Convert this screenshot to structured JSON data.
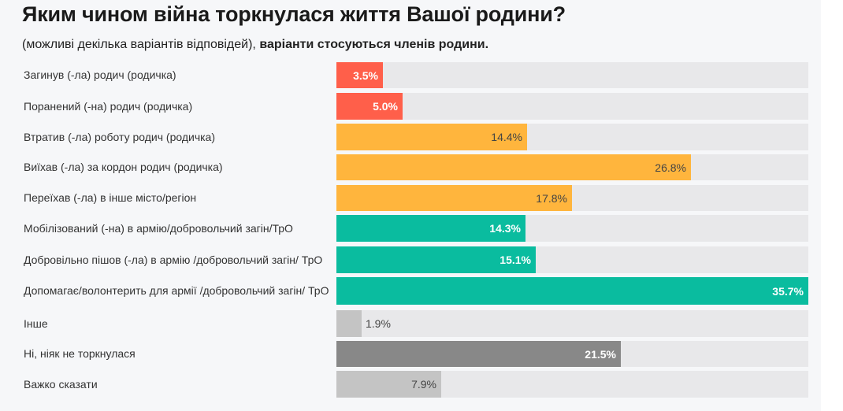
{
  "title": "Яким чином війна торкнулася життя Вашої родини?",
  "subtitle_normal": "(можливі декілька варіантів відповідей),",
  "subtitle_bold": "варіанти стосуються членів родини.",
  "chart_data": {
    "type": "bar",
    "orientation": "horizontal",
    "title": "Яким чином війна торкнулася життя Вашої родини?",
    "xlim": [
      0,
      35.7
    ],
    "grid": false,
    "categories": [
      "Загинув (-ла) родич (родичка)",
      "Поранений (-на) родич (родичка)",
      "Втратив (-ла) роботу родич (родичка)",
      "Виїхав (-ла) за кордон родич (родичка)",
      "Переїхав (-ла) в інше місто/регіон",
      "Мобілізований (-на) в армію/добровольчий загін/ТрО",
      "Добровільно пішов (-ла) в армію /добровольчий загін/ ТрО",
      "Допомагає/волонтерить для армії /добровольчий загін/ ТрО",
      "Інше",
      "Ні, ніяк не торкнулася",
      "Важко сказати"
    ],
    "values": [
      3.5,
      5.0,
      14.4,
      26.8,
      17.8,
      14.3,
      15.1,
      35.7,
      1.9,
      21.5,
      7.9
    ],
    "value_labels": [
      "3.5%",
      "5.0%",
      "14.4%",
      "26.8%",
      "17.8%",
      "14.3%",
      "15.1%",
      "35.7%",
      "1.9%",
      "21.5%",
      "7.9%"
    ],
    "colors": [
      "#ff5f4a",
      "#ff5f4a",
      "#ffb53d",
      "#ffb53d",
      "#ffb53d",
      "#0abc9f",
      "#0abc9f",
      "#0abc9f",
      "#c4c4c4",
      "#888888",
      "#c4c4c4"
    ],
    "label_colors": [
      "#ffffff",
      "#ffffff",
      "#444444",
      "#444444",
      "#444444",
      "#ffffff",
      "#ffffff",
      "#ffffff",
      "#444444",
      "#ffffff",
      "#444444"
    ],
    "track_color": "#e8e8ea"
  }
}
